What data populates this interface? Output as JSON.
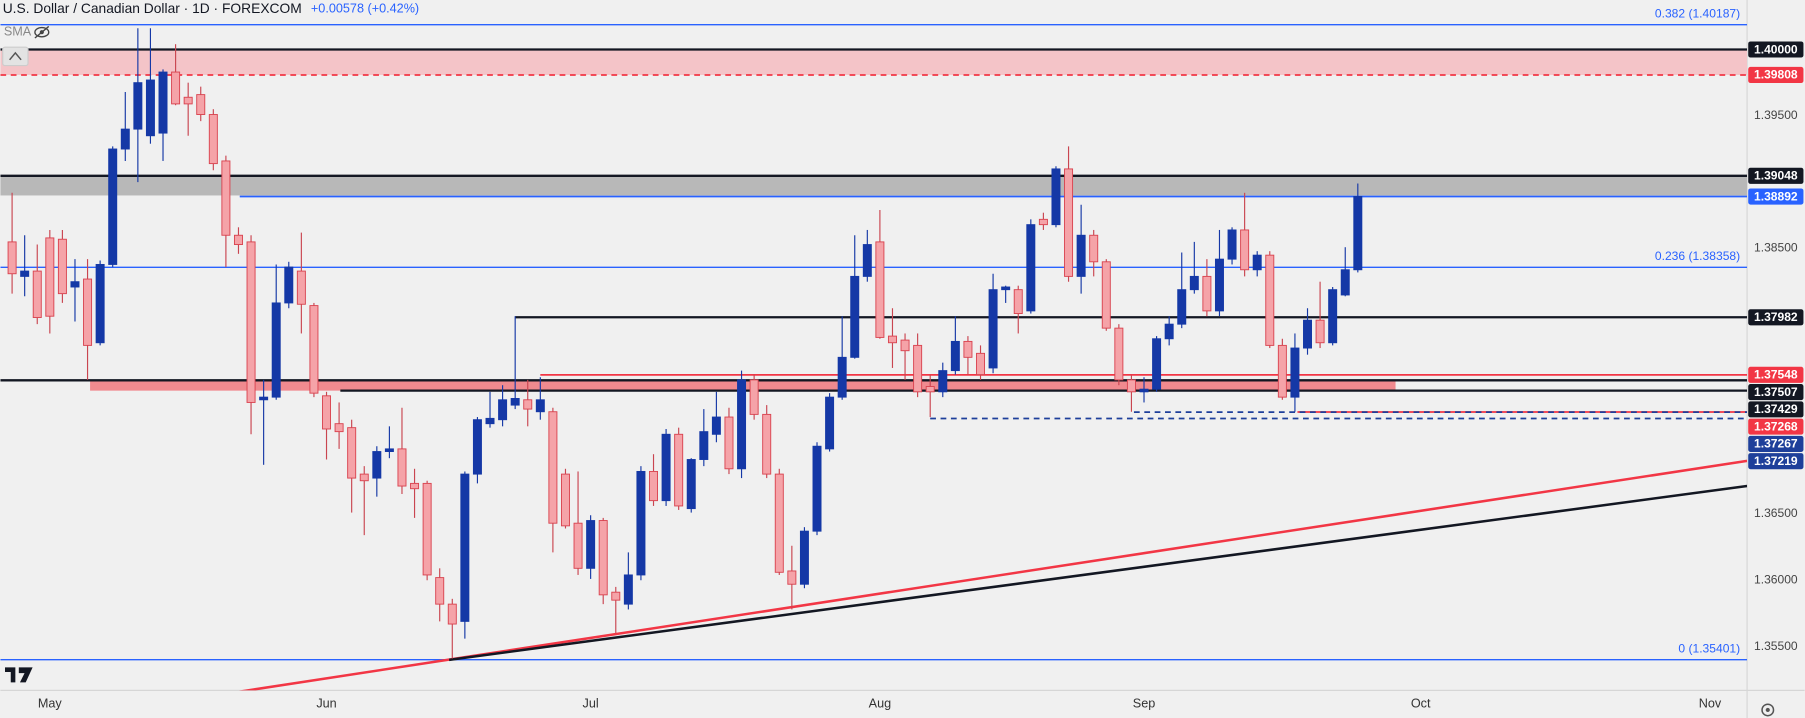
{
  "header": {
    "symbol": "U.S. Dollar / Canadian Dollar · 1D · FOREXCOM",
    "change": "+0.00578 (+0.42%)",
    "indicator": "SMA"
  },
  "chart_data": {
    "type": "candlestick",
    "up_color": "#1538a6",
    "down_color": "#f5a3a8",
    "xlim": [
      -3.93,
      134.95
    ],
    "ylim": [
      1.3517,
      1.40373
    ],
    "xticks": [
      {
        "value": 0,
        "label": "May"
      },
      {
        "value": 22,
        "label": "Jun"
      },
      {
        "value": 43,
        "label": "Jul"
      },
      {
        "value": 66,
        "label": "Aug"
      },
      {
        "value": 87,
        "label": "Sep"
      },
      {
        "value": 109,
        "label": "Oct"
      },
      {
        "value": 132,
        "label": "Nov"
      }
    ],
    "yticks": [
      {
        "value": 1.395,
        "label": "1.39500"
      },
      {
        "value": 1.385,
        "label": "1.38500"
      },
      {
        "value": 1.365,
        "label": "1.36500"
      },
      {
        "value": 1.36,
        "label": "1.36000"
      },
      {
        "value": 1.355,
        "label": "1.35500"
      }
    ],
    "grid": false,
    "x": [
      -3,
      -2,
      -1,
      0,
      1,
      2,
      3,
      4,
      5,
      6,
      7,
      8,
      9,
      10,
      11,
      12,
      13,
      14,
      15,
      16,
      17,
      18,
      19,
      20,
      21,
      22,
      23,
      24,
      25,
      26,
      27,
      28,
      29,
      30,
      31,
      32,
      33,
      34,
      35,
      36,
      37,
      38,
      39,
      40,
      41,
      42,
      43,
      44,
      45,
      46,
      47,
      48,
      49,
      50,
      51,
      52,
      53,
      54,
      55,
      56,
      57,
      58,
      59,
      60,
      61,
      62,
      63,
      64,
      65,
      66,
      67,
      68,
      69,
      70,
      71,
      72,
      73,
      74,
      75,
      76,
      77,
      78,
      79,
      80,
      81,
      82,
      83,
      84,
      85,
      86,
      87,
      88,
      89,
      90,
      91,
      92,
      93,
      94,
      95,
      96,
      97,
      98,
      99,
      100,
      101,
      102,
      103,
      104
    ],
    "ohlc": [
      [
        1.3855,
        1.3892,
        1.3816,
        1.3831
      ],
      [
        1.3829,
        1.386,
        1.3814,
        1.3833
      ],
      [
        1.3833,
        1.3853,
        1.3793,
        1.3798
      ],
      [
        1.3858,
        1.3864,
        1.3786,
        1.3799
      ],
      [
        1.3857,
        1.3864,
        1.3809,
        1.3816
      ],
      [
        1.3821,
        1.3842,
        1.3795,
        1.3825
      ],
      [
        1.3827,
        1.3842,
        1.3751,
        1.3777
      ],
      [
        1.3779,
        1.3841,
        1.3777,
        1.3838
      ],
      [
        1.3838,
        1.3927,
        1.3836,
        1.3925
      ],
      [
        1.3925,
        1.3968,
        1.3916,
        1.394
      ],
      [
        1.394,
        1.4016,
        1.39,
        1.3975
      ],
      [
        1.3935,
        1.4016,
        1.3929,
        1.3977
      ],
      [
        1.3937,
        1.3985,
        1.3916,
        1.3983
      ],
      [
        1.3983,
        1.4004,
        1.3958,
        1.3959
      ],
      [
        1.3964,
        1.3975,
        1.3935,
        1.3959
      ],
      [
        1.3966,
        1.3972,
        1.3946,
        1.3951
      ],
      [
        1.3951,
        1.3955,
        1.3909,
        1.3914
      ],
      [
        1.3916,
        1.392,
        1.3836,
        1.386
      ],
      [
        1.386,
        1.3866,
        1.3846,
        1.3853
      ],
      [
        1.3855,
        1.386,
        1.371,
        1.3734
      ],
      [
        1.3736,
        1.3751,
        1.3687,
        1.3738
      ],
      [
        1.3738,
        1.3838,
        1.3736,
        1.3809
      ],
      [
        1.3809,
        1.384,
        1.3805,
        1.3836
      ],
      [
        1.3833,
        1.3862,
        1.3786,
        1.3808
      ],
      [
        1.3807,
        1.3809,
        1.3738,
        1.3741
      ],
      [
        1.3739,
        1.3742,
        1.3691,
        1.3714
      ],
      [
        1.3718,
        1.3734,
        1.3699,
        1.3712
      ],
      [
        1.3715,
        1.3721,
        1.3651,
        1.3677
      ],
      [
        1.368,
        1.3686,
        1.3634,
        1.3675
      ],
      [
        1.3677,
        1.3701,
        1.3663,
        1.3697
      ],
      [
        1.3697,
        1.3716,
        1.3692,
        1.3699
      ],
      [
        1.3699,
        1.373,
        1.3665,
        1.3671
      ],
      [
        1.3673,
        1.3684,
        1.3647,
        1.3669
      ],
      [
        1.3673,
        1.3675,
        1.36,
        1.3604
      ],
      [
        1.3602,
        1.3609,
        1.3569,
        1.3582
      ],
      [
        1.3582,
        1.3586,
        1.3541,
        1.3567
      ],
      [
        1.3569,
        1.3682,
        1.3556,
        1.368
      ],
      [
        1.368,
        1.3723,
        1.3673,
        1.3721
      ],
      [
        1.3718,
        1.3742,
        1.3715,
        1.3722
      ],
      [
        1.3721,
        1.3747,
        1.3716,
        1.3736
      ],
      [
        1.3732,
        1.3799,
        1.3729,
        1.3737
      ],
      [
        1.3736,
        1.3751,
        1.3716,
        1.3729
      ],
      [
        1.3727,
        1.3753,
        1.3721,
        1.3736
      ],
      [
        1.3727,
        1.373,
        1.3621,
        1.3643
      ],
      [
        1.368,
        1.3684,
        1.3639,
        1.3641
      ],
      [
        1.3643,
        1.3682,
        1.3604,
        1.3609
      ],
      [
        1.3609,
        1.3649,
        1.3601,
        1.3645
      ],
      [
        1.3645,
        1.3647,
        1.3582,
        1.3589
      ],
      [
        1.3591,
        1.3595,
        1.356,
        1.3585
      ],
      [
        1.3582,
        1.3621,
        1.3578,
        1.3604
      ],
      [
        1.3604,
        1.3686,
        1.36,
        1.3682
      ],
      [
        1.3682,
        1.3695,
        1.3656,
        1.366
      ],
      [
        1.366,
        1.3714,
        1.3656,
        1.371
      ],
      [
        1.371,
        1.3715,
        1.3653,
        1.3656
      ],
      [
        1.3654,
        1.3692,
        1.3651,
        1.3691
      ],
      [
        1.3691,
        1.3729,
        1.3686,
        1.3712
      ],
      [
        1.371,
        1.3742,
        1.3704,
        1.3723
      ],
      [
        1.3723,
        1.373,
        1.368,
        1.3684
      ],
      [
        1.3684,
        1.3758,
        1.3677,
        1.3751
      ],
      [
        1.3751,
        1.3755,
        1.3721,
        1.3725
      ],
      [
        1.3725,
        1.3732,
        1.3677,
        1.368
      ],
      [
        1.368,
        1.3684,
        1.3604,
        1.3606
      ],
      [
        1.3607,
        1.3626,
        1.3578,
        1.3597
      ],
      [
        1.3597,
        1.364,
        1.3594,
        1.3637
      ],
      [
        1.3637,
        1.3704,
        1.3634,
        1.3701
      ],
      [
        1.3699,
        1.3741,
        1.3697,
        1.3738
      ],
      [
        1.3738,
        1.3799,
        1.3736,
        1.3768
      ],
      [
        1.3768,
        1.386,
        1.3767,
        1.3829
      ],
      [
        1.3829,
        1.3864,
        1.3825,
        1.3853
      ],
      [
        1.3855,
        1.3879,
        1.3782,
        1.3783
      ],
      [
        1.3784,
        1.3805,
        1.376,
        1.3779
      ],
      [
        1.3781,
        1.3786,
        1.3751,
        1.3773
      ],
      [
        1.3777,
        1.3786,
        1.3738,
        1.3742
      ],
      [
        1.3746,
        1.3755,
        1.3723,
        1.3742
      ],
      [
        1.3742,
        1.3764,
        1.3738,
        1.3758
      ],
      [
        1.3758,
        1.3799,
        1.3755,
        1.378
      ],
      [
        1.378,
        1.3784,
        1.3755,
        1.3768
      ],
      [
        1.3771,
        1.3777,
        1.3751,
        1.3755
      ],
      [
        1.376,
        1.3831,
        1.3756,
        1.3819
      ],
      [
        1.3819,
        1.3822,
        1.3809,
        1.3821
      ],
      [
        1.3819,
        1.3822,
        1.3786,
        1.3801
      ],
      [
        1.3803,
        1.3872,
        1.3801,
        1.3868
      ],
      [
        1.3872,
        1.3877,
        1.3864,
        1.3868
      ],
      [
        1.3868,
        1.3912,
        1.3866,
        1.391
      ],
      [
        1.391,
        1.3927,
        1.3825,
        1.3829
      ],
      [
        1.3829,
        1.3883,
        1.3816,
        1.386
      ],
      [
        1.386,
        1.3864,
        1.3829,
        1.384
      ],
      [
        1.384,
        1.3842,
        1.3788,
        1.379
      ],
      [
        1.379,
        1.3793,
        1.3747,
        1.3751
      ],
      [
        1.3751,
        1.3755,
        1.3727,
        1.3742
      ],
      [
        1.3742,
        1.3753,
        1.3734,
        1.3744
      ],
      [
        1.3744,
        1.3784,
        1.3742,
        1.3782
      ],
      [
        1.3782,
        1.3799,
        1.3777,
        1.3793
      ],
      [
        1.3793,
        1.3847,
        1.379,
        1.3819
      ],
      [
        1.3819,
        1.3855,
        1.3816,
        1.3829
      ],
      [
        1.3829,
        1.3842,
        1.3799,
        1.3803
      ],
      [
        1.3803,
        1.3864,
        1.3799,
        1.3842
      ],
      [
        1.3842,
        1.3866,
        1.3838,
        1.3864
      ],
      [
        1.3864,
        1.3892,
        1.3829,
        1.3834
      ],
      [
        1.3834,
        1.3848,
        1.3829,
        1.3845
      ],
      [
        1.3845,
        1.3848,
        1.3775,
        1.3777
      ],
      [
        1.3777,
        1.3782,
        1.3736,
        1.3738
      ],
      [
        1.3738,
        1.3786,
        1.3727,
        1.3775
      ],
      [
        1.3775,
        1.3805,
        1.377,
        1.3796
      ],
      [
        1.3796,
        1.3825,
        1.3775,
        1.3779
      ],
      [
        1.3779,
        1.3821,
        1.3777,
        1.3819
      ],
      [
        1.3815,
        1.3851,
        1.3814,
        1.3834
      ],
      [
        1.3834,
        1.3899,
        1.3832,
        1.38892
      ]
    ],
    "zones": [
      {
        "low": 1.39808,
        "high": 1.4,
        "color": "#f4c4c8"
      },
      {
        "low": 1.389,
        "high": 1.39048,
        "color": "#b8b8b8"
      },
      {
        "low": 1.37429,
        "high": 1.37507,
        "color": "#f08a8f",
        "from": 3.2,
        "to": 107
      }
    ],
    "fib_color": "#2962ff",
    "fibs": [
      {
        "value": 1.40187,
        "label": "0.382 (1.40187)"
      },
      {
        "value": 1.38358,
        "label": "0.236 (1.38358)"
      },
      {
        "value": 1.35401,
        "label": "0 (1.35401)"
      }
    ],
    "levels": [
      {
        "value": 1.4,
        "label": "1.40000",
        "color": "#131722"
      },
      {
        "value": 1.39808,
        "label": "1.39808",
        "color": "#f23645",
        "style": "dashed"
      },
      {
        "value": 1.39048,
        "label": "1.39048",
        "color": "#131722"
      },
      {
        "value": 1.38892,
        "label": "1.38892",
        "color": "#2962ff",
        "from": 15.1
      },
      {
        "value": 1.37982,
        "label": "1.37982",
        "color": "#131722",
        "from": 37
      },
      {
        "value": 1.37548,
        "label": "1.37548",
        "color": "#f23645",
        "from": 39
      },
      {
        "value": 1.37507,
        "label": "1.37507",
        "color": "#131722"
      },
      {
        "value": 1.37429,
        "label": "1.37429",
        "color": "#131722",
        "from": 23.1
      },
      {
        "value": 1.37268,
        "label": "1.37268",
        "color": "#f23645",
        "from": 99.2
      },
      {
        "value": 1.37267,
        "label": "1.37267",
        "color": "#1e3f9a",
        "style": "dashed",
        "from": 86.2
      },
      {
        "value": 1.37219,
        "label": "1.37219",
        "color": "#1e3f9a",
        "style": "dashed",
        "from": 70
      }
    ],
    "trendlines": [
      {
        "color": "#f23645",
        "x": [
          13,
          134.95
        ],
        "y": [
          1.3513,
          1.369
        ]
      },
      {
        "color": "#131722",
        "x": [
          31.75,
          134.95
        ],
        "y": [
          1.354,
          1.3671
        ]
      }
    ]
  }
}
